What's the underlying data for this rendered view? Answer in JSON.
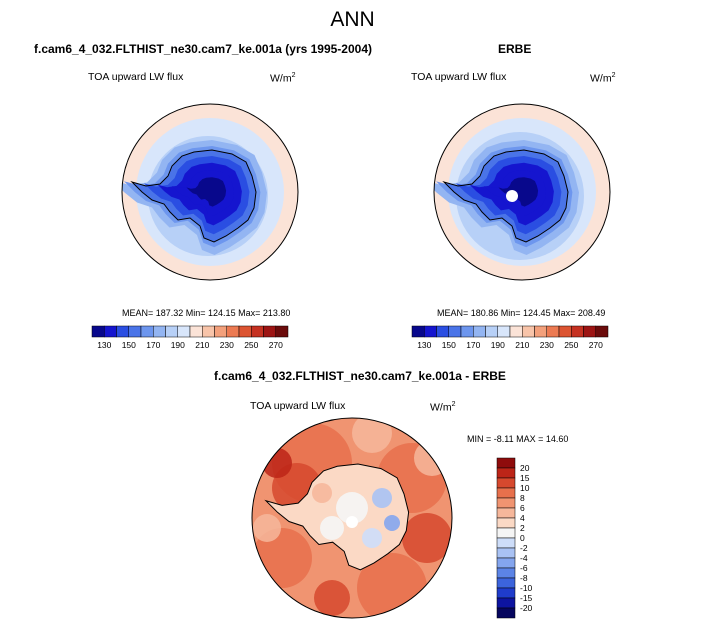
{
  "main_title": "ANN",
  "colors": {
    "seq": [
      "#08088c",
      "#1515cf",
      "#2a4ee2",
      "#4a74e8",
      "#6d96ee",
      "#93b5f2",
      "#b7d0f7",
      "#d8e6fb",
      "#fbe3d7",
      "#f8c4a9",
      "#f3a07b",
      "#ec7a52",
      "#dc5431",
      "#c53121",
      "#9d1413",
      "#6b0b0b"
    ],
    "diff": [
      "#06065e",
      "#0d14a0",
      "#1f3ccb",
      "#3c64dc",
      "#5c84e6",
      "#84a5ee",
      "#a9c2f4",
      "#cdddf9",
      "#f5f5f5",
      "#fbd9c5",
      "#f6b79b",
      "#f09471",
      "#e7704c",
      "#d6492e",
      "#bc2518",
      "#8f0c0c"
    ]
  },
  "panels": {
    "left": {
      "title": "f.cam6_4_032.FLTHIST_ne30.cam7_ke.001a (yrs 1995-2004)",
      "variable": "TOA upward LW flux",
      "units": "W/m",
      "units_sup": "2",
      "stats": "MEAN= 187.32  Min= 124.15  Max= 213.80"
    },
    "right": {
      "title": "ERBE",
      "variable": "TOA upward LW flux",
      "units": "W/m",
      "units_sup": "2",
      "stats": "MEAN= 180.86  Min= 124.45  Max= 208.49"
    },
    "bottom": {
      "title": "f.cam6_4_032.FLTHIST_ne30.cam7_ke.001a - ERBE",
      "variable": "TOA upward LW flux",
      "units": "W/m",
      "units_sup": "2",
      "stats": "MIN =  -8.11  MAX =  14.60"
    }
  },
  "chart_data": [
    {
      "type": "heatmap",
      "projection": "south polar stereographic",
      "title": "f.cam6_4_032.FLTHIST_ne30.cam7_ke.001a (yrs 1995-2004)",
      "variable": "TOA upward LW flux",
      "units": "W/m2",
      "mean": 187.32,
      "min": 124.15,
      "max": 213.8,
      "colorbar_ticks": [
        130,
        150,
        170,
        190,
        210,
        230,
        250,
        270
      ],
      "colorbar_tick_labels": [
        "130",
        "150",
        "170",
        "190",
        "210",
        "230",
        "250",
        "270"
      ]
    },
    {
      "type": "heatmap",
      "projection": "south polar stereographic",
      "title": "ERBE",
      "variable": "TOA upward LW flux",
      "units": "W/m2",
      "mean": 180.86,
      "min": 124.45,
      "max": 208.49,
      "colorbar_ticks": [
        130,
        150,
        170,
        190,
        210,
        230,
        250,
        270
      ],
      "colorbar_tick_labels": [
        "130",
        "150",
        "170",
        "190",
        "210",
        "230",
        "250",
        "270"
      ]
    },
    {
      "type": "heatmap",
      "projection": "south polar stereographic",
      "title": "f.cam6_4_032.FLTHIST_ne30.cam7_ke.001a - ERBE",
      "variable": "TOA upward LW flux",
      "units": "W/m2",
      "min": -8.11,
      "max": 14.6,
      "colorbar_ticks": [
        20,
        15,
        10,
        8,
        6,
        4,
        2,
        0,
        -2,
        -4,
        -6,
        -8,
        -10,
        -15,
        -20
      ],
      "colorbar_tick_labels": [
        "20",
        "15",
        "10",
        "8",
        "6",
        "4",
        "2",
        "0",
        "-2",
        "-4",
        "-6",
        "-8",
        "-10",
        "-15",
        "-20"
      ]
    }
  ]
}
